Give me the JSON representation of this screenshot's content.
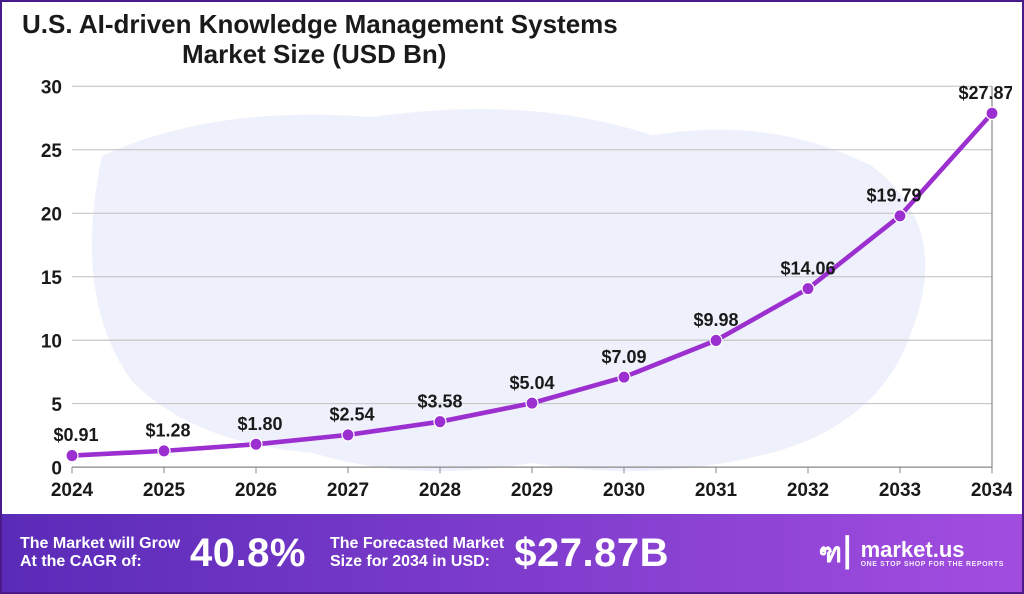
{
  "title_line1": "U.S. AI-driven Knowledge Management Systems",
  "title_line2": "Market Size (USD Bn)",
  "chart": {
    "type": "line",
    "categories": [
      "2024",
      "2025",
      "2026",
      "2027",
      "2028",
      "2029",
      "2030",
      "2031",
      "2032",
      "2033",
      "2034"
    ],
    "values": [
      0.91,
      1.28,
      1.8,
      2.54,
      3.58,
      5.04,
      7.09,
      9.98,
      14.06,
      19.79,
      27.87
    ],
    "value_labels": [
      "$0.91",
      "$1.28",
      "$1.80",
      "$2.54",
      "$3.58",
      "$5.04",
      "$7.09",
      "$9.98",
      "$14.06",
      "$19.79",
      "$27.87"
    ],
    "ylim": [
      0,
      30
    ],
    "ytick_step": 5,
    "yticks": [
      0,
      5,
      10,
      15,
      20,
      25,
      30
    ],
    "line_color": "#9b2fcf",
    "marker_color": "#9b2fcf",
    "line_width": 4.5,
    "marker_radius": 6,
    "background_color": "#ffffff",
    "map_fill": "#eef1fb",
    "grid_color": "#bfbfbf",
    "axis_color": "#8a8a8a",
    "tick_fontsize": 19,
    "data_label_fontsize": 18,
    "title_fontsize": 26
  },
  "footer": {
    "bg_gradient_from": "#5a2bb8",
    "bg_gradient_to": "#a24de0",
    "cagr_label": "The Market will Grow\nAt the CAGR of:",
    "cagr_value": "40.8%",
    "forecast_label": "The Forecasted Market\nSize for 2034 in USD:",
    "forecast_value": "$27.87B",
    "brand_name": "market.us",
    "brand_tagline": "ONE STOP SHOP FOR THE REPORTS"
  },
  "border_color": "#4b1a8a"
}
